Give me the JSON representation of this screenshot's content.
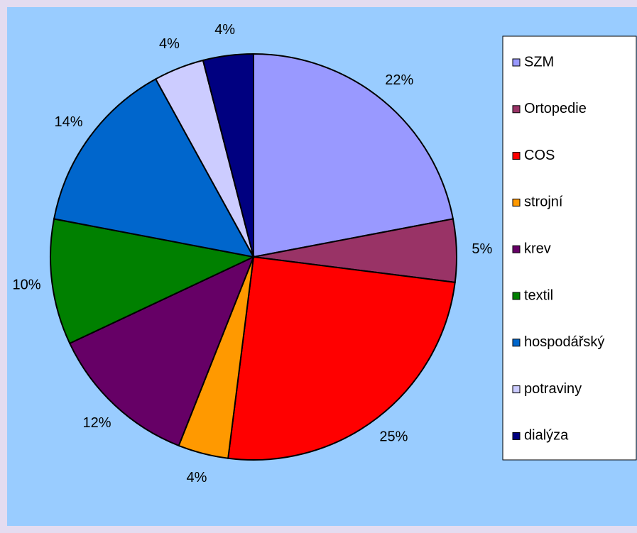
{
  "chart_data": {
    "type": "pie",
    "categories": [
      "SZM",
      "Ortopedie",
      "COS",
      "strojní",
      "krev",
      "textil",
      "hospodářský",
      "potraviny",
      "dialýza"
    ],
    "values": [
      22,
      5,
      25,
      4,
      12,
      10,
      14,
      4,
      4
    ],
    "value_labels": [
      "22%",
      "5%",
      "25%",
      "4%",
      "12%",
      "10%",
      "14%",
      "4%",
      "4%"
    ],
    "colors": [
      "#9999ff",
      "#993366",
      "#ff0000",
      "#ff9900",
      "#660066",
      "#008000",
      "#0066cc",
      "#ccccff",
      "#000080"
    ],
    "legend": "right"
  }
}
